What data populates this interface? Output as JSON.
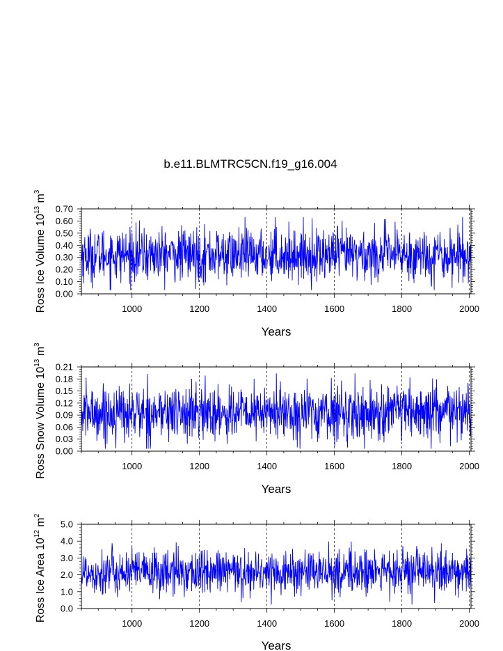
{
  "title": "b.e11.BLMTRC5CN.f19_g16.004",
  "colors": {
    "series": "#0000ff",
    "axis": "#000000",
    "grid": "#000000"
  },
  "chart_data": [
    {
      "type": "line",
      "ylabel_parts": [
        "Ross Ice Volume 10",
        "13",
        " m",
        "3"
      ],
      "xlabel": "Years",
      "xlim": [
        850,
        2005
      ],
      "ylim": [
        0,
        0.7
      ],
      "x_ticks": [
        1000,
        1200,
        1400,
        1600,
        1800,
        2000
      ],
      "x_tick_labels": [
        "1000",
        "1200",
        "1400",
        "1600",
        "1800",
        "2000"
      ],
      "y_ticks": [
        0,
        0.1,
        0.2,
        0.3,
        0.4,
        0.5,
        0.6,
        0.7
      ],
      "y_tick_labels": [
        "0.00",
        "0.10",
        "0.20",
        "0.30",
        "0.40",
        "0.50",
        "0.60",
        "0.70"
      ],
      "grid": "dashed vertical lines at x ticks",
      "series": [
        {
          "x_start": 850,
          "x_end": 2005,
          "mean": 0.32,
          "envelope": [
            0.05,
            0.62
          ],
          "peak": [
            1425,
            0.67
          ],
          "values": []
        }
      ]
    },
    {
      "type": "line",
      "ylabel_parts": [
        "Ross Snow Volume 10",
        "13",
        " m",
        "3"
      ],
      "xlabel": "Years",
      "xlim": [
        850,
        2005
      ],
      "ylim": [
        0,
        0.21
      ],
      "x_ticks": [
        1000,
        1200,
        1400,
        1600,
        1800,
        2000
      ],
      "x_tick_labels": [
        "1000",
        "1200",
        "1400",
        "1600",
        "1800",
        "2000"
      ],
      "y_ticks": [
        0,
        0.03,
        0.06,
        0.09,
        0.12,
        0.15,
        0.18,
        0.21
      ],
      "y_tick_labels": [
        "0.00",
        "0.03",
        "0.06",
        "0.09",
        "0.12",
        "0.15",
        "0.18",
        "0.21"
      ],
      "grid": "dashed vertical lines at x ticks",
      "series": [
        {
          "x_start": 850,
          "x_end": 2005,
          "mean": 0.095,
          "envelope": [
            0.01,
            0.19
          ],
          "peak": [
            1428,
            0.205
          ],
          "values": []
        }
      ]
    },
    {
      "type": "line",
      "ylabel_parts": [
        "Ross Ice Area 10",
        "12",
        " m",
        "2"
      ],
      "xlabel": "Years",
      "xlim": [
        850,
        2005
      ],
      "ylim": [
        0,
        5.0
      ],
      "x_ticks": [
        1000,
        1200,
        1400,
        1600,
        1800,
        2000
      ],
      "x_tick_labels": [
        "1000",
        "1200",
        "1400",
        "1600",
        "1800",
        "2000"
      ],
      "y_ticks": [
        0,
        1,
        2,
        3,
        4,
        5
      ],
      "y_tick_labels": [
        "0.0",
        "1.0",
        "2.0",
        "3.0",
        "4.0",
        "5.0"
      ],
      "grid": "dashed vertical lines at x ticks",
      "series": [
        {
          "x_start": 850,
          "x_end": 2005,
          "mean": 2.15,
          "envelope": [
            0.4,
            3.9
          ],
          "peak": [
            1650,
            4.05
          ],
          "values": []
        }
      ]
    }
  ]
}
